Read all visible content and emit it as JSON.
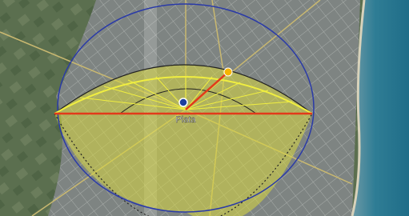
{
  "map": {
    "place_label": "Plata"
  }
}
